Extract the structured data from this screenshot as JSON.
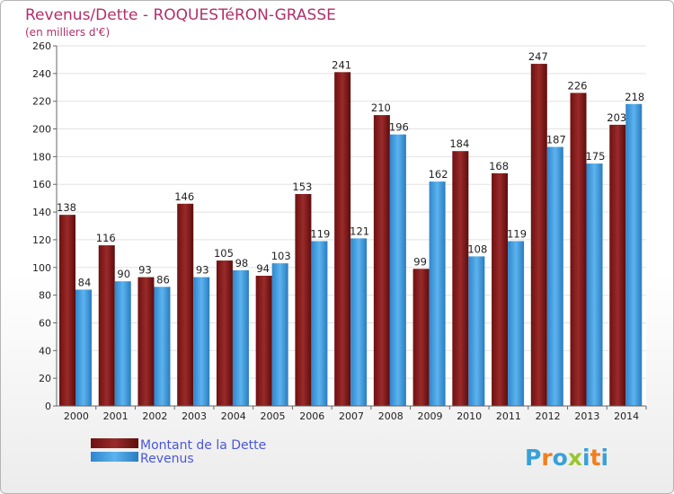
{
  "chart_data": {
    "type": "bar",
    "title": "Revenus/Dette - ROQUESTéRON-GRASSE",
    "subtitle": "(en milliers d'€)",
    "categories": [
      "2000",
      "2001",
      "2002",
      "2003",
      "2004",
      "2005",
      "2006",
      "2007",
      "2008",
      "2009",
      "2010",
      "2011",
      "2012",
      "2013",
      "2014"
    ],
    "series": [
      {
        "name": "Montant de la Dette",
        "color": "#8b1c1c",
        "values": [
          138,
          116,
          93,
          146,
          105,
          94,
          153,
          241,
          210,
          99,
          184,
          168,
          247,
          226,
          203
        ]
      },
      {
        "name": "Revenus",
        "color": "#3a9be0",
        "values": [
          84,
          90,
          86,
          93,
          98,
          103,
          119,
          121,
          196,
          162,
          108,
          119,
          187,
          175,
          218
        ]
      }
    ],
    "ylim": [
      0,
      260
    ],
    "yticks": [
      0,
      20,
      40,
      60,
      80,
      100,
      120,
      140,
      160,
      180,
      200,
      220,
      240,
      260
    ],
    "grid": true,
    "legend_position": "bottom-left"
  },
  "branding": {
    "logo_letters": [
      "P",
      "r",
      "o",
      "x",
      "i",
      "t",
      "i"
    ],
    "logo_colors": [
      "#3aa0d8",
      "#f07f22",
      "#3aa0d8",
      "#9ac62e",
      "#3aa0d8",
      "#f07f22",
      "#3aa0d8"
    ]
  }
}
